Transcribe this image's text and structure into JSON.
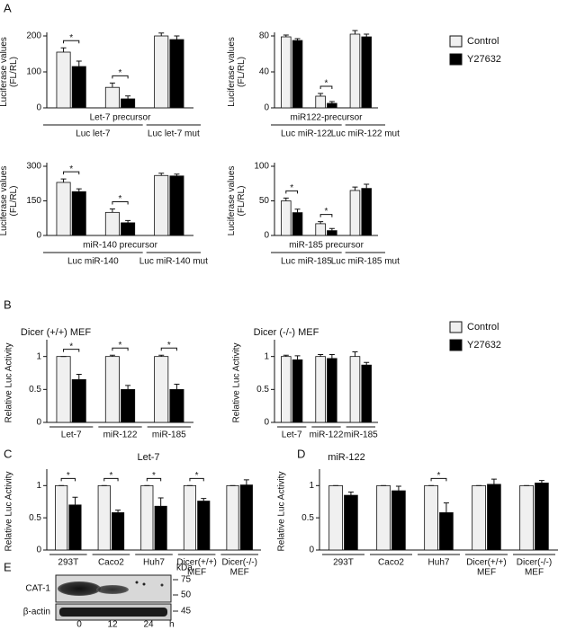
{
  "panels": [
    "A",
    "B",
    "C",
    "D",
    "E"
  ],
  "chart_data": [
    {
      "type": "bar",
      "ylabel": [
        "Luciferase values",
        "(FL/RL)"
      ],
      "ylim": [
        0,
        200
      ],
      "yticks": [
        0,
        100,
        200
      ],
      "precursor": "Let-7 precursor",
      "groups": [
        "Luc let-7",
        "Luc let-7 mut"
      ],
      "annotations": [
        "*",
        "*",
        null
      ],
      "series": [
        {
          "name": "Control",
          "color": "#f0f0f0",
          "values": [
            155,
            57,
            200
          ],
          "errors": [
            12,
            12,
            8
          ]
        },
        {
          "name": "Y27632",
          "color": "#000000",
          "values": [
            115,
            25,
            190
          ],
          "errors": [
            15,
            8,
            10
          ]
        }
      ]
    },
    {
      "type": "bar",
      "ylabel": [
        "Luciferase values",
        "(FL/RL)"
      ],
      "ylim": [
        0,
        80
      ],
      "yticks": [
        0,
        40,
        80
      ],
      "precursor": "miR122-precursor",
      "groups": [
        "Luc miR-122",
        "Luc miR-122 mut"
      ],
      "annotations": [
        null,
        "*",
        null
      ],
      "legend": true,
      "series": [
        {
          "name": "Control",
          "color": "#f0f0f0",
          "values": [
            79,
            13,
            82
          ],
          "errors": [
            2,
            3,
            4
          ]
        },
        {
          "name": "Y27632",
          "color": "#000000",
          "values": [
            75,
            5,
            79
          ],
          "errors": [
            2,
            2,
            3
          ]
        }
      ]
    },
    {
      "type": "bar",
      "ylabel": [
        "Luciferase values",
        "(FL/RL)"
      ],
      "ylim": [
        0,
        300
      ],
      "yticks": [
        0,
        150,
        300
      ],
      "precursor": "miR-140 precursor",
      "groups": [
        "Luc miR-140",
        "Luc miR-140 mut"
      ],
      "annotations": [
        "*",
        "*",
        null
      ],
      "series": [
        {
          "name": "Control",
          "color": "#f0f0f0",
          "values": [
            230,
            100,
            260
          ],
          "errors": [
            15,
            15,
            10
          ]
        },
        {
          "name": "Y27632",
          "color": "#000000",
          "values": [
            190,
            55,
            258
          ],
          "errors": [
            12,
            10,
            8
          ]
        }
      ]
    },
    {
      "type": "bar",
      "ylabel": [
        "Luciferase values",
        "(FL/RL)"
      ],
      "ylim": [
        0,
        100
      ],
      "yticks": [
        0,
        50,
        100
      ],
      "precursor": "miR-185 precursor",
      "groups": [
        "Luc miR-185",
        "Luc miR-185 mut"
      ],
      "annotations": [
        "*",
        "*",
        null
      ],
      "series": [
        {
          "name": "Control",
          "color": "#f0f0f0",
          "values": [
            50,
            17,
            65
          ],
          "errors": [
            4,
            3,
            5
          ]
        },
        {
          "name": "Y27632",
          "color": "#000000",
          "values": [
            33,
            7,
            68
          ],
          "errors": [
            5,
            3,
            6
          ]
        }
      ]
    },
    {
      "type": "bar",
      "title": "Dicer (+/+) MEF",
      "ylabel": [
        "Relative Luc Activity"
      ],
      "ylim": [
        0,
        1.2
      ],
      "yticks": [
        0,
        0.5,
        1
      ],
      "categories": [
        [
          "Let-7"
        ],
        [
          "miR-122"
        ],
        [
          "miR-185"
        ]
      ],
      "annotations": [
        "*",
        "*",
        "*"
      ],
      "series": [
        {
          "name": "Control",
          "color": "#f0f0f0",
          "values": [
            1,
            1,
            1
          ],
          "errors": [
            0,
            0.02,
            0.02
          ]
        },
        {
          "name": "Y27632",
          "color": "#000000",
          "values": [
            0.65,
            0.5,
            0.5
          ],
          "errors": [
            0.08,
            0.06,
            0.08
          ]
        }
      ]
    },
    {
      "type": "bar",
      "title": "Dicer (-/-) MEF",
      "ylabel": [
        "Relative Luc Activity"
      ],
      "ylim": [
        0,
        1.2
      ],
      "yticks": [
        0,
        0.5,
        1
      ],
      "categories": [
        [
          "Let-7"
        ],
        [
          "miR-122"
        ],
        [
          "miR-185"
        ]
      ],
      "annotations": [
        null,
        null,
        null
      ],
      "legend": true,
      "series": [
        {
          "name": "Control",
          "color": "#f0f0f0",
          "values": [
            1,
            1,
            1
          ],
          "errors": [
            0.02,
            0.03,
            0.07
          ]
        },
        {
          "name": "Y27632",
          "color": "#000000",
          "values": [
            0.95,
            0.97,
            0.87
          ],
          "errors": [
            0.06,
            0.06,
            0.04
          ]
        }
      ]
    },
    {
      "type": "bar",
      "title": "Let-7",
      "ylabel": [
        "Relative Luc Activity"
      ],
      "ylim": [
        0,
        1.2
      ],
      "yticks": [
        0,
        0.5,
        1
      ],
      "categories": [
        [
          "293T"
        ],
        [
          "Caco2"
        ],
        [
          "Huh7"
        ],
        [
          "Dicer(+/+)",
          "MEF"
        ],
        [
          "Dicer(-/-)",
          "MEF"
        ]
      ],
      "annotations": [
        "*",
        "*",
        "*",
        "*",
        null
      ],
      "series": [
        {
          "name": "Control",
          "color": "#f0f0f0",
          "values": [
            1,
            1,
            1,
            1,
            1
          ],
          "errors": [
            0,
            0,
            0,
            0,
            0
          ]
        },
        {
          "name": "Y27632",
          "color": "#000000",
          "values": [
            0.7,
            0.58,
            0.68,
            0.76,
            1.01
          ],
          "errors": [
            0.12,
            0.04,
            0.13,
            0.04,
            0.08
          ]
        }
      ]
    },
    {
      "type": "bar",
      "title": "miR-122",
      "ylabel": [
        "Relative Luc Activity"
      ],
      "ylim": [
        0,
        1.2
      ],
      "yticks": [
        0,
        0.5,
        1
      ],
      "categories": [
        [
          "293T"
        ],
        [
          "Caco2"
        ],
        [
          "Huh7"
        ],
        [
          "Dicer(+/+)",
          "MEF"
        ],
        [
          "Dicer(-/-)",
          "MEF"
        ]
      ],
      "annotations": [
        null,
        null,
        "*",
        null,
        null
      ],
      "series": [
        {
          "name": "Control",
          "color": "#f0f0f0",
          "values": [
            1,
            1,
            1,
            1,
            1
          ],
          "errors": [
            0,
            0,
            0,
            0,
            0
          ]
        },
        {
          "name": "Y27632",
          "color": "#000000",
          "values": [
            0.85,
            0.92,
            0.58,
            1.02,
            1.04
          ],
          "errors": [
            0.05,
            0.07,
            0.15,
            0.08,
            0.04
          ]
        }
      ]
    }
  ],
  "blot": {
    "rows": [
      "CAT-1",
      "β-actin"
    ],
    "size_unit": "kDa",
    "sizes": [
      75,
      50,
      45
    ],
    "lanes": [
      0,
      12,
      24
    ],
    "lane_unit": "h"
  }
}
